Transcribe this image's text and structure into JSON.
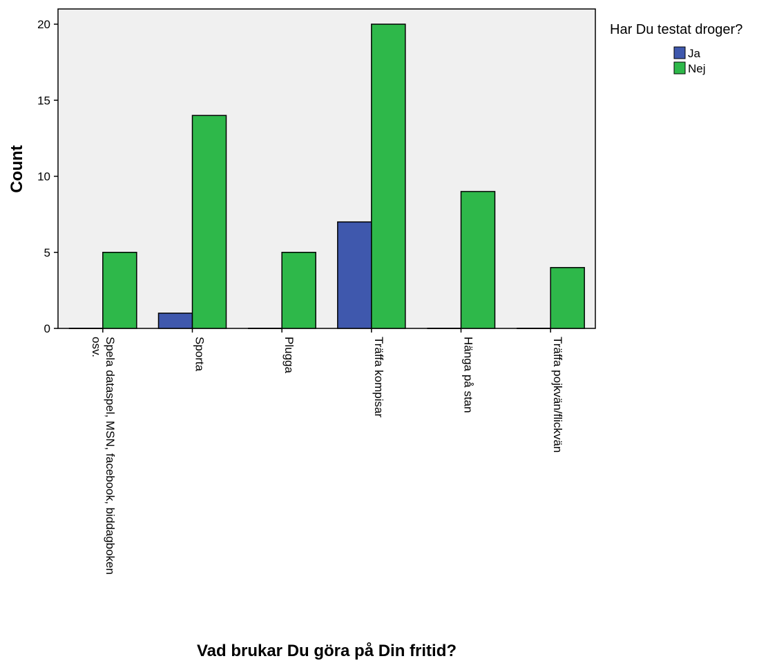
{
  "chart_data": {
    "type": "bar",
    "xlabel": "Vad brukar Du göra på Din fritid?",
    "ylabel": "Count",
    "ylim": [
      0,
      21
    ],
    "yticks": [
      0,
      5,
      10,
      15,
      20
    ],
    "categories": [
      [
        "Spela dataspel, MSN, facebook, biddagboken",
        "osv."
      ],
      [
        "Sporta"
      ],
      [
        "Plugga"
      ],
      [
        "Träffa kompisar"
      ],
      [
        "Hänga på stan"
      ],
      [
        "Träffa pojkvän/flickvän"
      ]
    ],
    "legend_title": "Har Du testat droger?",
    "legend_position": "top-right",
    "grid": false,
    "series": [
      {
        "name": "Ja",
        "color": "#3f58ad",
        "values": [
          0,
          1,
          0,
          7,
          0,
          0
        ]
      },
      {
        "name": "Nej",
        "color": "#2eb84a",
        "values": [
          5,
          14,
          5,
          20,
          9,
          4
        ]
      }
    ],
    "plot_background": "#f0f0f0"
  }
}
